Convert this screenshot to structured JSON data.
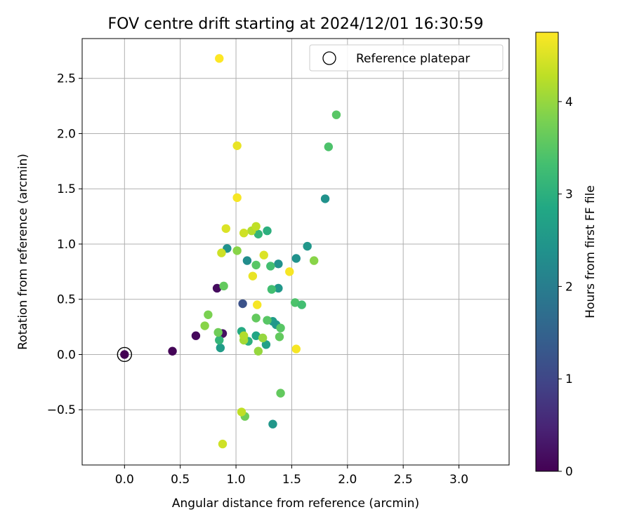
{
  "chart_data": {
    "type": "scatter",
    "title": "FOV centre drift starting at 2024/12/01 16:30:59",
    "xlabel": "Angular distance from reference (arcmin)",
    "ylabel": "Rotation from reference (arcmin)",
    "xlim": [
      -0.38,
      3.45
    ],
    "ylim": [
      -1.0,
      2.86
    ],
    "xticks": [
      0.0,
      0.5,
      1.0,
      1.5,
      2.0,
      2.5,
      3.0
    ],
    "xtick_labels": [
      "0.0",
      "0.5",
      "1.0",
      "1.5",
      "2.0",
      "2.5",
      "3.0"
    ],
    "yticks": [
      -0.5,
      0.0,
      0.5,
      1.0,
      1.5,
      2.0,
      2.5
    ],
    "ytick_labels": [
      "−0.5",
      "0.0",
      "0.5",
      "1.0",
      "1.5",
      "2.0",
      "2.5"
    ],
    "grid": true,
    "legend": {
      "position": "top-right",
      "entries": [
        "Reference platepar"
      ]
    },
    "colorbar": {
      "label": "Hours from first FF file",
      "range": [
        0,
        4.75
      ],
      "ticks": [
        0,
        1,
        2,
        3,
        4
      ],
      "tick_labels": [
        "0",
        "1",
        "2",
        "3",
        "4"
      ],
      "colormap": "viridis"
    },
    "reference_point": {
      "x": 0.0,
      "y": 0.0
    },
    "points": [
      {
        "x": 0.0,
        "y": 0.0,
        "c": 0.0
      },
      {
        "x": 0.43,
        "y": 0.03,
        "c": 0.05
      },
      {
        "x": 0.64,
        "y": 0.17,
        "c": 0.1
      },
      {
        "x": 0.83,
        "y": 0.6,
        "c": 0.15
      },
      {
        "x": 0.88,
        "y": 0.19,
        "c": 0.2
      },
      {
        "x": 1.06,
        "y": 0.46,
        "c": 1.2
      },
      {
        "x": 0.86,
        "y": 0.06,
        "c": 2.6
      },
      {
        "x": 0.92,
        "y": 0.96,
        "c": 2.4
      },
      {
        "x": 1.1,
        "y": 0.85,
        "c": 2.3
      },
      {
        "x": 1.38,
        "y": 0.82,
        "c": 2.4
      },
      {
        "x": 1.38,
        "y": 0.6,
        "c": 2.5
      },
      {
        "x": 1.54,
        "y": 0.87,
        "c": 2.4
      },
      {
        "x": 1.64,
        "y": 0.98,
        "c": 2.5
      },
      {
        "x": 1.8,
        "y": 1.41,
        "c": 2.4
      },
      {
        "x": 1.33,
        "y": -0.63,
        "c": 2.5
      },
      {
        "x": 1.33,
        "y": 0.3,
        "c": 2.6
      },
      {
        "x": 1.36,
        "y": 0.27,
        "c": 2.5
      },
      {
        "x": 1.27,
        "y": 0.09,
        "c": 2.7
      },
      {
        "x": 1.18,
        "y": 0.17,
        "c": 2.8
      },
      {
        "x": 1.05,
        "y": 0.21,
        "c": 2.9
      },
      {
        "x": 1.11,
        "y": 0.12,
        "c": 3.0
      },
      {
        "x": 0.85,
        "y": 0.13,
        "c": 3.1
      },
      {
        "x": 1.28,
        "y": 1.12,
        "c": 3.0
      },
      {
        "x": 1.2,
        "y": 1.09,
        "c": 3.1
      },
      {
        "x": 1.31,
        "y": 0.8,
        "c": 3.3
      },
      {
        "x": 1.32,
        "y": 0.59,
        "c": 3.3
      },
      {
        "x": 1.53,
        "y": 0.47,
        "c": 3.4
      },
      {
        "x": 1.59,
        "y": 0.45,
        "c": 3.3
      },
      {
        "x": 1.83,
        "y": 1.88,
        "c": 3.4
      },
      {
        "x": 1.9,
        "y": 2.17,
        "c": 3.5
      },
      {
        "x": 1.18,
        "y": 0.81,
        "c": 3.5
      },
      {
        "x": 1.18,
        "y": 0.33,
        "c": 3.6
      },
      {
        "x": 1.28,
        "y": 0.31,
        "c": 3.5
      },
      {
        "x": 1.39,
        "y": 0.16,
        "c": 3.6
      },
      {
        "x": 1.4,
        "y": 0.24,
        "c": 3.5
      },
      {
        "x": 0.89,
        "y": 0.62,
        "c": 3.6
      },
      {
        "x": 0.84,
        "y": 0.2,
        "c": 3.7
      },
      {
        "x": 0.75,
        "y": 0.36,
        "c": 3.8
      },
      {
        "x": 0.72,
        "y": 0.26,
        "c": 3.9
      },
      {
        "x": 1.4,
        "y": -0.35,
        "c": 3.6
      },
      {
        "x": 1.08,
        "y": -0.56,
        "c": 3.7
      },
      {
        "x": 1.7,
        "y": 0.85,
        "c": 3.9
      },
      {
        "x": 1.01,
        "y": 0.94,
        "c": 3.9
      },
      {
        "x": 1.2,
        "y": 0.03,
        "c": 4.0
      },
      {
        "x": 1.24,
        "y": 0.15,
        "c": 4.0
      },
      {
        "x": 1.07,
        "y": 0.13,
        "c": 4.1
      },
      {
        "x": 1.07,
        "y": 0.17,
        "c": 4.2
      },
      {
        "x": 1.14,
        "y": 1.12,
        "c": 4.2
      },
      {
        "x": 1.18,
        "y": 1.16,
        "c": 4.3
      },
      {
        "x": 1.07,
        "y": 1.1,
        "c": 4.4
      },
      {
        "x": 0.91,
        "y": 1.14,
        "c": 4.5
      },
      {
        "x": 0.87,
        "y": 0.92,
        "c": 4.4
      },
      {
        "x": 1.05,
        "y": -0.52,
        "c": 4.3
      },
      {
        "x": 0.88,
        "y": -0.81,
        "c": 4.4
      },
      {
        "x": 1.25,
        "y": 0.9,
        "c": 4.5
      },
      {
        "x": 1.01,
        "y": 1.89,
        "c": 4.6
      },
      {
        "x": 1.01,
        "y": 1.42,
        "c": 4.7
      },
      {
        "x": 1.15,
        "y": 0.71,
        "c": 4.6
      },
      {
        "x": 1.19,
        "y": 0.45,
        "c": 4.7
      },
      {
        "x": 1.48,
        "y": 0.75,
        "c": 4.7
      },
      {
        "x": 1.54,
        "y": 0.05,
        "c": 4.7
      },
      {
        "x": 0.85,
        "y": 2.68,
        "c": 4.75
      }
    ]
  }
}
